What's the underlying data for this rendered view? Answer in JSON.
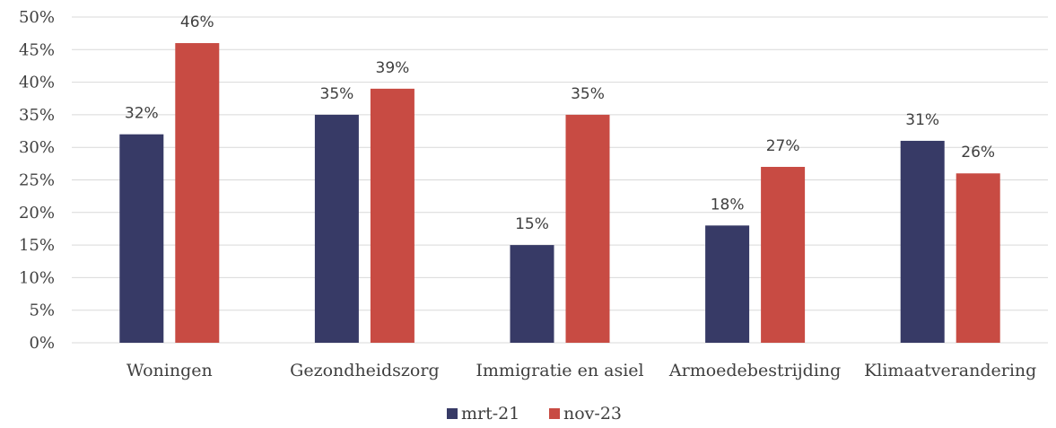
{
  "chart_data": {
    "type": "bar",
    "categories": [
      "Woningen",
      "Gezondheidszorg",
      "Immigratie en asiel",
      "Armoedebestrijding",
      "Klimaatverandering"
    ],
    "series": [
      {
        "name": "mrt-21",
        "values": [
          32,
          35,
          15,
          18,
          31
        ],
        "labels": [
          "32%",
          "35%",
          "15%",
          "18%",
          "31%"
        ],
        "color": "#373a66"
      },
      {
        "name": "nov-23",
        "values": [
          46,
          39,
          35,
          27,
          26
        ],
        "labels": [
          "46%",
          "39%",
          "35%",
          "27%",
          "26%"
        ],
        "color": "#c84b43"
      }
    ],
    "ylim": [
      0,
      50
    ],
    "yticks": [
      0,
      5,
      10,
      15,
      20,
      25,
      30,
      35,
      40,
      45,
      50
    ],
    "ytick_labels": [
      "0%",
      "5%",
      "10%",
      "15%",
      "20%",
      "25%",
      "30%",
      "35%",
      "40%",
      "45%",
      "50%"
    ],
    "title": "",
    "xlabel": "",
    "ylabel": "",
    "grid": true,
    "gridline_color": "#d9d9d9",
    "legend_position": "bottom-center"
  }
}
